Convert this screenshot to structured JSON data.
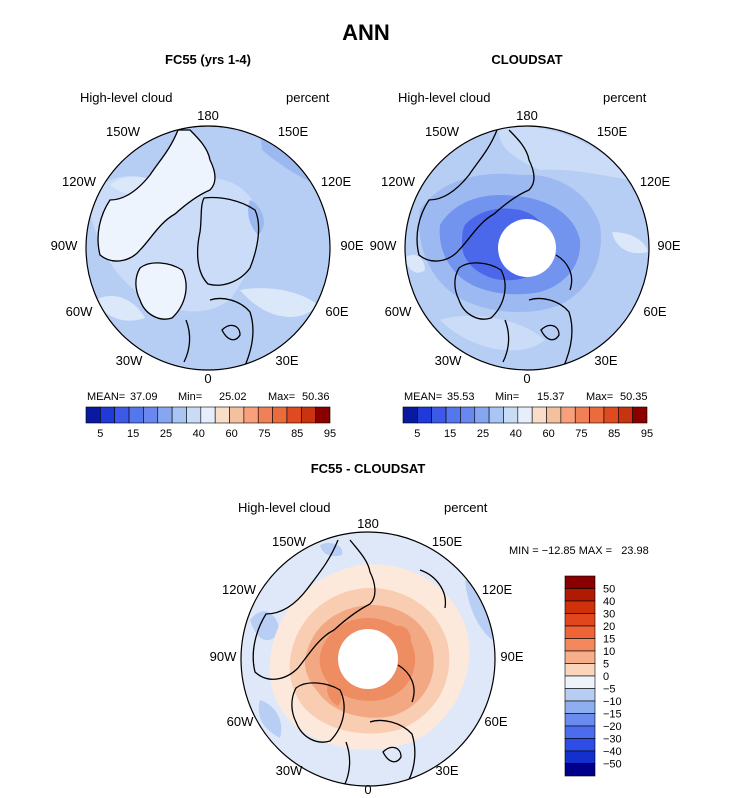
{
  "figure_title": "ANN",
  "colors": {
    "outline": "#000000",
    "polar_hole": "#ffffff",
    "positive_ramp": [
      "#f3d0b8",
      "#f7b08c",
      "#f18a5e",
      "#ea6b3c",
      "#e04a20",
      "#c83410",
      "#a81e00",
      "#8a0000"
    ],
    "negative_ramp": [
      "#d9e8f8",
      "#c8dcf6",
      "#a9c5f3",
      "#86a6f0",
      "#6a86ef",
      "#3c5ae7",
      "#1f3ad6",
      "#0a1aa0",
      "#00008b"
    ]
  },
  "chart_data": [
    {
      "type": "heatmap",
      "projection": "north-polar-stereographic",
      "title": "FC55 (yrs 1-4)",
      "left_label": "High-level cloud",
      "right_label": "percent",
      "longitude_labels": [
        "180",
        "150E",
        "120E",
        "90E",
        "60E",
        "30E",
        "0",
        "30W",
        "60W",
        "90W",
        "120W",
        "150W"
      ],
      "stats": {
        "mean_label": "MEAN=",
        "mean": "37.09",
        "min_label": "Min=",
        "min": "25.02",
        "max_label": "Max=",
        "max": "50.36"
      },
      "colorbar": {
        "orientation": "horizontal",
        "levels": [
          5,
          10,
          15,
          20,
          25,
          30,
          35,
          40,
          50,
          60,
          70,
          75,
          80,
          85,
          90,
          95
        ],
        "tick_labels": [
          "5",
          "15",
          "25",
          "40",
          "60",
          "75",
          "85",
          "95"
        ],
        "colors": [
          "#0a1aa0",
          "#1f3ad6",
          "#3c5ae7",
          "#5577ee",
          "#6a86ef",
          "#86a6f0",
          "#a9c5f3",
          "#c8dcf6",
          "#e6eefb",
          "#f8ddc8",
          "#f3c0a0",
          "#f7a07a",
          "#f08058",
          "#ea6b3c",
          "#e04a20",
          "#c83410",
          "#8a0000"
        ]
      },
      "polar_hole": false
    },
    {
      "type": "heatmap",
      "projection": "north-polar-stereographic",
      "title": "CLOUDSAT",
      "left_label": "High-level cloud",
      "right_label": "percent",
      "longitude_labels": [
        "180",
        "150E",
        "120E",
        "90E",
        "60E",
        "30E",
        "0",
        "30W",
        "60W",
        "90W",
        "120W",
        "150W"
      ],
      "stats": {
        "mean_label": "MEAN=",
        "mean": "35.53",
        "min_label": "Min=",
        "min": "15.37",
        "max_label": "Max=",
        "max": "50.35"
      },
      "colorbar": {
        "orientation": "horizontal",
        "levels": [
          5,
          10,
          15,
          20,
          25,
          30,
          35,
          40,
          50,
          60,
          70,
          75,
          80,
          85,
          90,
          95
        ],
        "tick_labels": [
          "5",
          "15",
          "25",
          "40",
          "60",
          "75",
          "85",
          "95"
        ],
        "colors": [
          "#0a1aa0",
          "#1f3ad6",
          "#3c5ae7",
          "#5577ee",
          "#6a86ef",
          "#86a6f0",
          "#a9c5f3",
          "#c8dcf6",
          "#e6eefb",
          "#f8ddc8",
          "#f3c0a0",
          "#f7a07a",
          "#f08058",
          "#ea6b3c",
          "#e04a20",
          "#c83410",
          "#8a0000"
        ]
      },
      "polar_hole": true
    },
    {
      "type": "heatmap",
      "projection": "north-polar-stereographic",
      "title": "FC55 - CLOUDSAT",
      "left_label": "High-level cloud",
      "right_label": "percent",
      "longitude_labels": [
        "180",
        "150E",
        "120E",
        "90E",
        "60E",
        "30E",
        "0",
        "30W",
        "60W",
        "90W",
        "120W",
        "150W"
      ],
      "min_max_text": "MIN = −12.85 MAX =   23.98",
      "colorbar": {
        "orientation": "vertical",
        "tick_labels": [
          "50",
          "40",
          "30",
          "20",
          "15",
          "10",
          "5",
          "0",
          "−5",
          "−10",
          "−15",
          "−20",
          "−30",
          "−40",
          "−50"
        ],
        "colors": [
          "#8a0000",
          "#b01a00",
          "#d0300a",
          "#e2461c",
          "#ee6436",
          "#f2885c",
          "#f7ae8a",
          "#fbd4bc",
          "#eef3fa",
          "#b8cdf3",
          "#8eaef0",
          "#6a8cef",
          "#4c6cee",
          "#2e4ce6",
          "#1430cc",
          "#00008b"
        ]
      },
      "polar_hole": true
    }
  ]
}
